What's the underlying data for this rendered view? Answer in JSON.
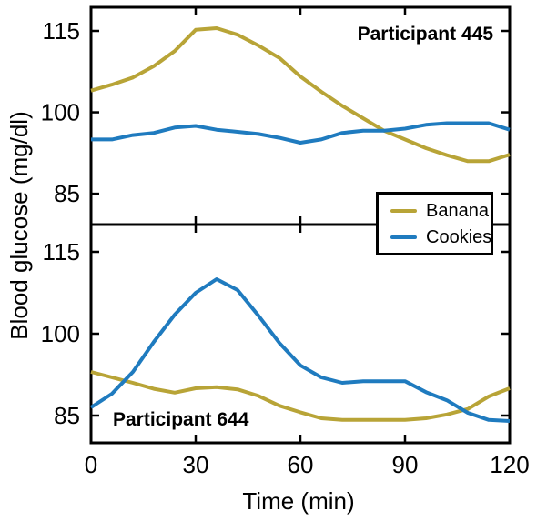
{
  "chart_data": {
    "type": "line",
    "xlabel": "Time (min)",
    "ylabel": "Blood glucose (mg/dl)",
    "x_ticks": [
      0,
      30,
      60,
      90,
      120
    ],
    "y_ticks": [
      85,
      100,
      115
    ],
    "xlim": [
      0,
      120
    ],
    "grid": false,
    "legend": {
      "position": "centered between stacked panels, right side",
      "entries": [
        {
          "label": "Banana",
          "color": "#b8a437"
        },
        {
          "label": "Cookies",
          "color": "#1f7bbf"
        }
      ]
    },
    "x": [
      0,
      6,
      12,
      18,
      24,
      30,
      36,
      42,
      48,
      54,
      60,
      66,
      72,
      78,
      84,
      90,
      96,
      102,
      108,
      114,
      120
    ],
    "panels": [
      {
        "annotation": "Participant 445",
        "annotation_pos": "top-right",
        "ylim": [
          79.5,
          119.5
        ],
        "series": [
          {
            "name": "Banana",
            "color": "#b8a437",
            "values": [
              104.0,
              105.1,
              106.4,
              108.5,
              111.3,
              115.2,
              115.5,
              114.3,
              112.3,
              110.0,
              106.6,
              103.8,
              101.2,
              98.9,
              96.6,
              95.0,
              93.4,
              92.1,
              91.0,
              91.0,
              92.2
            ]
          },
          {
            "name": "Cookies",
            "color": "#1f7bbf",
            "values": [
              95.0,
              95.0,
              95.8,
              96.2,
              97.2,
              97.5,
              96.8,
              96.4,
              96.0,
              95.3,
              94.4,
              95.0,
              96.2,
              96.6,
              96.6,
              97.0,
              97.7,
              98.0,
              98.0,
              98.0,
              96.8
            ]
          }
        ]
      },
      {
        "annotation": "Participant 644",
        "annotation_pos": "bottom-left",
        "ylim": [
          79.5,
          119.5
        ],
        "series": [
          {
            "name": "Banana",
            "color": "#b8a437",
            "values": [
              93.0,
              92.0,
              91.0,
              89.9,
              89.2,
              90.0,
              90.2,
              89.8,
              88.6,
              86.8,
              85.6,
              84.5,
              84.2,
              84.2,
              84.2,
              84.2,
              84.5,
              85.2,
              86.2,
              88.5,
              90.0
            ]
          },
          {
            "name": "Cookies",
            "color": "#1f7bbf",
            "values": [
              86.5,
              89.0,
              93.0,
              98.5,
              103.5,
              107.5,
              110.0,
              108.0,
              103.3,
              98.3,
              94.2,
              92.0,
              91.0,
              91.3,
              91.3,
              91.3,
              89.3,
              87.8,
              85.5,
              84.2,
              84.0
            ]
          }
        ]
      }
    ],
    "frame_color": "#000000",
    "background_color": "#ffffff"
  }
}
